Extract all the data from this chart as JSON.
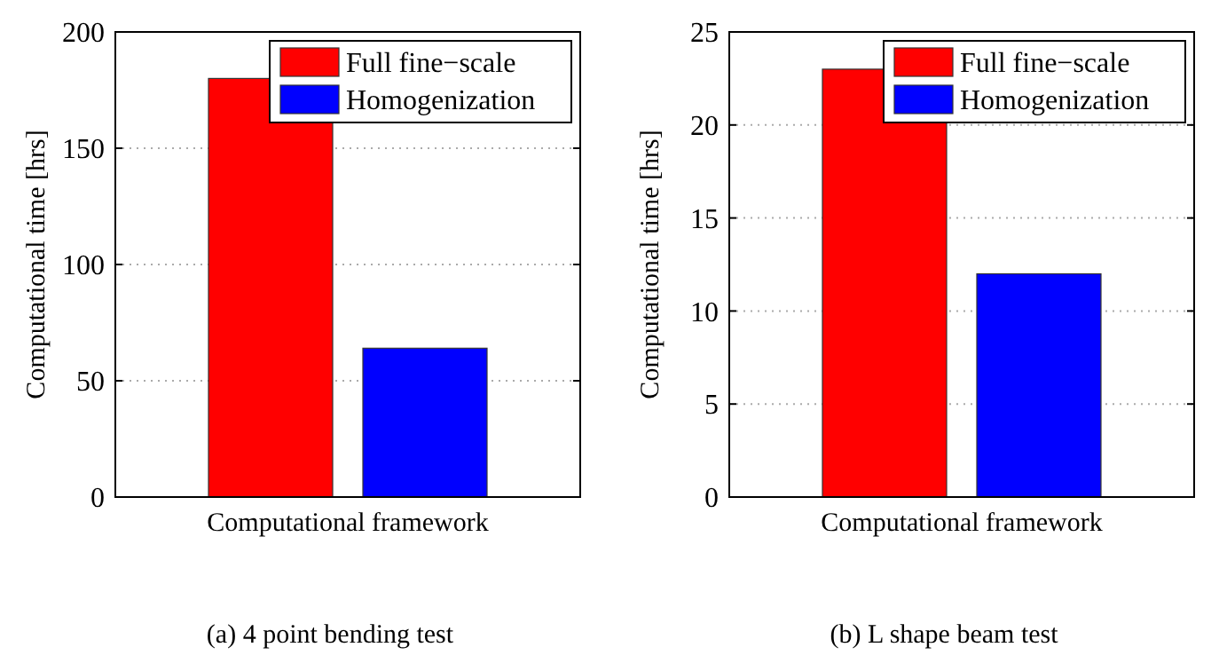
{
  "chart_data": [
    {
      "type": "bar",
      "categories": [
        "Computational framework"
      ],
      "ylabel": "Computational time [hrs]",
      "ylim": [
        0,
        200
      ],
      "yticks": [
        0,
        50,
        100,
        150,
        200
      ],
      "grid": "y",
      "legend": "top right",
      "annotations": [
        "(a) 4 point bending test"
      ],
      "series": [
        {
          "name": "Full fine−scale",
          "color": "#ff0000",
          "values": [
            180
          ]
        },
        {
          "name": "Homogenization",
          "color": "#0000ff",
          "values": [
            64
          ]
        }
      ]
    },
    {
      "type": "bar",
      "categories": [
        "Computational framework"
      ],
      "ylabel": "Computational time [hrs]",
      "ylim": [
        0,
        25
      ],
      "yticks": [
        0,
        5,
        10,
        15,
        20,
        25
      ],
      "grid": "y",
      "legend": "top right",
      "annotations": [
        "(b) L shape beam test"
      ],
      "series": [
        {
          "name": "Full fine−scale",
          "color": "#ff0000",
          "values": [
            23
          ]
        },
        {
          "name": "Homogenization",
          "color": "#0000ff",
          "values": [
            12
          ]
        }
      ]
    }
  ]
}
